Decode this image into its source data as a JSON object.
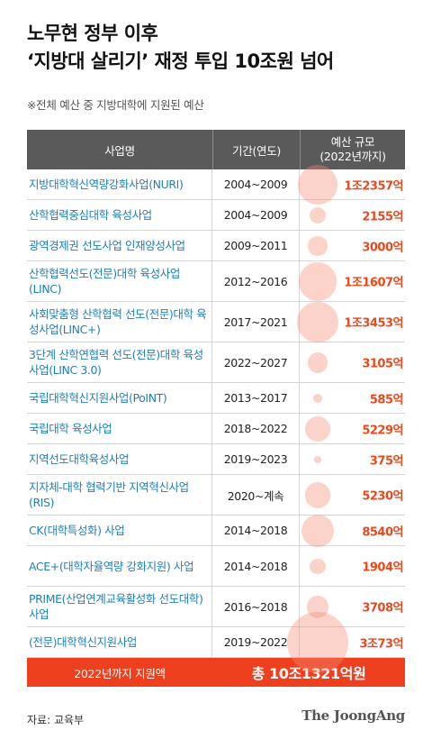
{
  "title_line1": "노무현 정부 이후",
  "title_line2": "‘지방대 살리기’ 재정 투입 10조원 넘어",
  "subtitle": "※전체 예산 중 지방대학에 지원된 예산",
  "header": {
    "col_name": "사업명",
    "col_period": "기간(연도)",
    "col_budget_1": "예산 규모",
    "col_budget_2": "(2022년까지)"
  },
  "total": {
    "label": "2022년까지 지원액",
    "value": "총 10조1321억원"
  },
  "source": "자료: 교육부",
  "brand": "The JoongAng",
  "colors": {
    "header_bg": "#5a5a5a",
    "name_text": "#1f7fb8",
    "amount_text": "#e8491d",
    "bubble": "#f58c73",
    "total_bg": "#ee3f1f"
  },
  "chart_data": {
    "type": "table",
    "unit": "억원",
    "rows": [
      {
        "name": "지방대학혁신역량강화사업(NURI)",
        "period": "2004~2009",
        "budget_label": "1조2357억",
        "value": 12357
      },
      {
        "name": "산학협력중심대학 육성사업",
        "period": "2004~2009",
        "budget_label": "2155억",
        "value": 2155
      },
      {
        "name": "광역경제권 선도사업 인재양성사업",
        "period": "2009~2011",
        "budget_label": "3000억",
        "value": 3000
      },
      {
        "name": "산학협력선도(전문)대학 육성사업(LINC)",
        "period": "2012~2016",
        "budget_label": "1조1607억",
        "value": 11607
      },
      {
        "name": "사회맞춤형 산학협력 선도(전문)대학 육성사업(LINC+)",
        "period": "2017~2021",
        "budget_label": "1조3453억",
        "value": 13453
      },
      {
        "name": "3단계 산학연협력 선도(전문)대학 육성사업(LINC 3.0)",
        "period": "2022~2027",
        "budget_label": "3105억",
        "value": 3105
      },
      {
        "name": "국립대학혁신지원사업(PoINT)",
        "period": "2013~2017",
        "budget_label": "585억",
        "value": 585
      },
      {
        "name": "국립대학 육성사업",
        "period": "2018~2022",
        "budget_label": "5229억",
        "value": 5229
      },
      {
        "name": "지역선도대학육성사업",
        "period": "2019~2023",
        "budget_label": "375억",
        "value": 375
      },
      {
        "name": "지자체-대학 협력기반 지역혁신사업(RIS)",
        "period": "2020~계속",
        "budget_label": "5230억",
        "value": 5230
      },
      {
        "name": "CK(대학특성화) 사업",
        "period": "2014~2018",
        "budget_label": "8540억",
        "value": 8540
      },
      {
        "name": "ACE+(대학자율역량 강화지원) 사업",
        "period": "2014~2018",
        "budget_label": "1904억",
        "value": 1904
      },
      {
        "name": "PRIME(산업연계교육활성화 선도대학) 사업",
        "period": "2016~2018",
        "budget_label": "3708억",
        "value": 3708
      },
      {
        "name": "(전문)대학혁신지원사업",
        "period": "2019~2022",
        "budget_label": "3조73억",
        "value": 30073
      }
    ]
  }
}
